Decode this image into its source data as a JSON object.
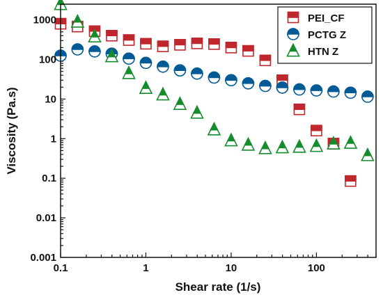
{
  "chart_data": {
    "type": "scatter",
    "xlabel": "Shear rate (1/s)",
    "ylabel": "Viscosity (Pa.s)",
    "x_scale": "log",
    "y_scale": "log",
    "xlim": [
      0.1,
      500
    ],
    "ylim": [
      0.001,
      2500
    ],
    "x_ticks": [
      {
        "value": 0.1,
        "label": "0.1"
      },
      {
        "value": 1,
        "label": "1"
      },
      {
        "value": 10,
        "label": "10"
      },
      {
        "value": 100,
        "label": "100"
      }
    ],
    "y_ticks": [
      {
        "value": 0.001,
        "label": "0.001"
      },
      {
        "value": 0.01,
        "label": "0.01"
      },
      {
        "value": 0.1,
        "label": "0.1"
      },
      {
        "value": 1,
        "label": "1"
      },
      {
        "value": 10,
        "label": "10"
      },
      {
        "value": 100,
        "label": "100"
      },
      {
        "value": 1000,
        "label": "1000"
      }
    ],
    "grid": false,
    "legend_position": "top-right",
    "series": [
      {
        "name": "PEI_CF",
        "marker": "square",
        "color": "#c0272d",
        "points": [
          [
            0.1,
            800
          ],
          [
            0.158,
            680
          ],
          [
            0.251,
            520
          ],
          [
            0.398,
            400
          ],
          [
            0.631,
            310
          ],
          [
            1.0,
            250
          ],
          [
            1.585,
            215
          ],
          [
            2.512,
            235
          ],
          [
            3.981,
            255
          ],
          [
            6.31,
            245
          ],
          [
            10.0,
            200
          ],
          [
            15.85,
            165
          ],
          [
            25.12,
            95
          ],
          [
            39.81,
            30
          ],
          [
            63.1,
            5.5
          ],
          [
            100.0,
            1.6
          ],
          [
            158.5,
            0.75
          ],
          [
            251.2,
            0.085
          ]
        ]
      },
      {
        "name": "PCTG Z",
        "marker": "circle",
        "color": "#005a96",
        "points": [
          [
            0.1,
            125
          ],
          [
            0.158,
            180
          ],
          [
            0.251,
            160
          ],
          [
            0.398,
            140
          ],
          [
            0.631,
            105
          ],
          [
            1.0,
            82
          ],
          [
            1.585,
            66
          ],
          [
            2.512,
            53
          ],
          [
            3.981,
            44
          ],
          [
            6.31,
            35
          ],
          [
            10.0,
            30
          ],
          [
            15.85,
            25
          ],
          [
            25.12,
            21.5
          ],
          [
            39.81,
            19.5
          ],
          [
            63.1,
            17.5
          ],
          [
            100.0,
            16.5
          ],
          [
            158.5,
            15.5
          ],
          [
            251.2,
            14.5
          ],
          [
            398.1,
            11.5
          ]
        ]
      },
      {
        "name": "HTN Z",
        "marker": "triangle",
        "color": "#168c2d",
        "points": [
          [
            0.1,
            2500
          ],
          [
            0.158,
            900
          ],
          [
            0.251,
            380
          ],
          [
            0.398,
            120
          ],
          [
            0.631,
            45
          ],
          [
            1.0,
            19
          ],
          [
            1.585,
            13
          ],
          [
            2.512,
            7.5
          ],
          [
            3.981,
            4.5
          ],
          [
            6.31,
            1.7
          ],
          [
            10.0,
            0.9
          ],
          [
            15.85,
            0.7
          ],
          [
            25.12,
            0.57
          ],
          [
            39.81,
            0.6
          ],
          [
            63.1,
            0.62
          ],
          [
            100.0,
            0.65
          ],
          [
            158.5,
            0.75
          ],
          [
            251.2,
            0.78
          ],
          [
            398.1,
            0.38
          ]
        ]
      }
    ]
  }
}
